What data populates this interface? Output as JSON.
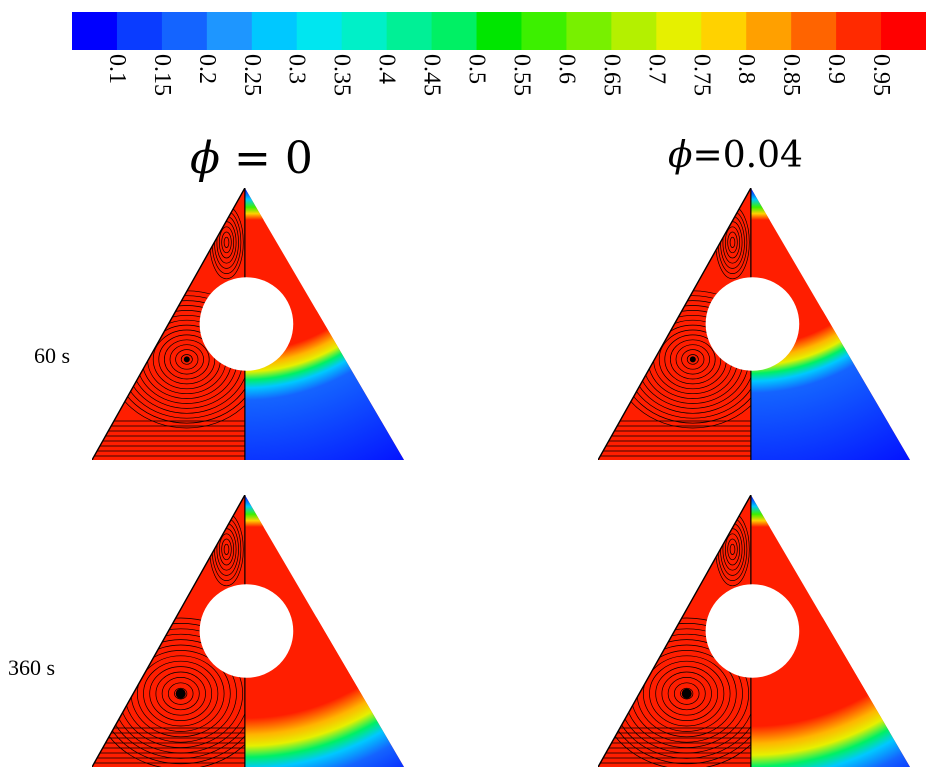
{
  "colorbar": {
    "tick_labels": [
      "0.1",
      "0.15",
      "0.2",
      "0.25",
      "0.3",
      "0.35",
      "0.4",
      "0.45",
      "0.5",
      "0.55",
      "0.6",
      "0.65",
      "0.7",
      "0.75",
      "0.8",
      "0.85",
      "0.9",
      "0.95"
    ],
    "colors": [
      "#0000ff",
      "#0a3cff",
      "#1464ff",
      "#1e96ff",
      "#00c8ff",
      "#00e6f0",
      "#00f0c8",
      "#00f096",
      "#00f064",
      "#00e600",
      "#3cf000",
      "#78f000",
      "#b4f000",
      "#e6f000",
      "#ffd200",
      "#ffa000",
      "#ff6400",
      "#ff2a00",
      "#ff0000"
    ]
  },
  "columns": [
    {
      "phi_symbol": "ϕ",
      "equals": "=",
      "phi_value": "0"
    },
    {
      "phi_symbol": "ϕ",
      "equals": "=",
      "phi_value": "0.04"
    }
  ],
  "rows": [
    {
      "time_label": "60 s"
    },
    {
      "time_label": "360 s"
    }
  ],
  "panels": [
    {
      "phi": 0,
      "time_s": 60,
      "front_level": 0.4
    },
    {
      "phi": 0.04,
      "time_s": 60,
      "front_level": 0.42
    },
    {
      "phi": 0,
      "time_s": 360,
      "front_level": 0.18
    },
    {
      "phi": 0.04,
      "time_s": 360,
      "front_level": 0.15
    }
  ]
}
